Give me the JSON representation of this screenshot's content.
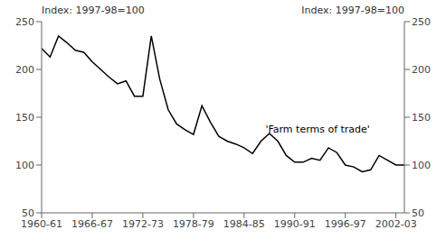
{
  "chart_data": {
    "type": "line",
    "y_label": "Index: 1997-98=100",
    "y2_label": "Index: 1997-98=100",
    "x": [
      1960,
      1961,
      1962,
      1963,
      1964,
      1965,
      1966,
      1967,
      1968,
      1969,
      1970,
      1971,
      1972,
      1973,
      1974,
      1975,
      1976,
      1977,
      1978,
      1979,
      1980,
      1981,
      1982,
      1983,
      1984,
      1985,
      1986,
      1987,
      1988,
      1989,
      1990,
      1991,
      1992,
      1993,
      1994,
      1995,
      1996,
      1997,
      1998,
      1999,
      2000,
      2001,
      2002,
      2003
    ],
    "values": [
      222,
      213,
      235,
      228,
      220,
      218,
      208,
      200,
      192,
      185,
      188,
      172,
      172,
      235,
      190,
      158,
      143,
      137,
      132,
      162,
      145,
      130,
      125,
      122,
      118,
      112,
      125,
      133,
      125,
      110,
      103,
      103,
      107,
      105,
      118,
      113,
      100,
      98,
      93,
      95,
      110,
      105,
      100,
      100
    ],
    "color": "#000000",
    "xlim": [
      1960,
      2003
    ],
    "xticks": [
      {
        "value": 1960,
        "label": "1960-61"
      },
      {
        "value": 1966,
        "label": "1966-67"
      },
      {
        "value": 1972,
        "label": "1972-73"
      },
      {
        "value": 1978,
        "label": "1978-79"
      },
      {
        "value": 1984,
        "label": "1984-85"
      },
      {
        "value": 1990,
        "label": "1990-91"
      },
      {
        "value": 1996,
        "label": "1996-97"
      },
      {
        "value": 2002,
        "label": "2002-03"
      }
    ],
    "ylim": [
      50,
      250
    ],
    "yticks": [
      50,
      100,
      150,
      200,
      250
    ],
    "y2lim": [
      50,
      250
    ],
    "y2ticks": [
      50,
      100,
      150,
      200,
      250
    ],
    "annotations": [
      {
        "text": "'Farm terms of trade'",
        "x": 1986.0,
        "y": 138
      }
    ],
    "grid": false
  }
}
